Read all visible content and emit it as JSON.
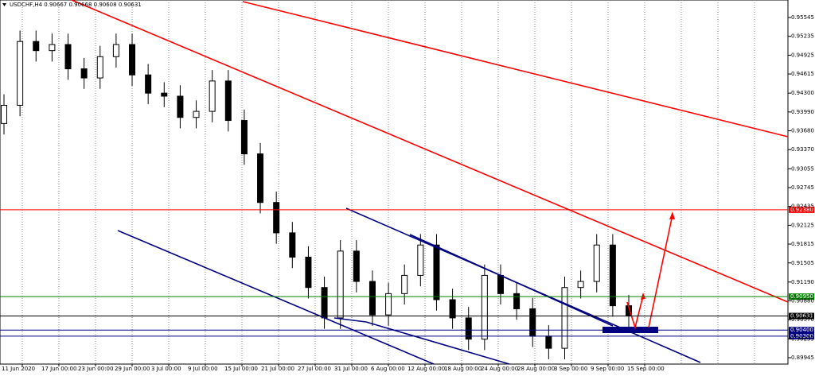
{
  "chart_data": {
    "type": "candlestick",
    "title": "USDCHF,H4  0.90667 0.90668 0.90608 0.90631",
    "categories": [
      "11 Jun 2020",
      "17 Jun 00:00",
      "23 Jun 00:00",
      "29 Jun 00:00",
      "3 Jul 00:00",
      "9 Jul 00:00",
      "15 Jul 00:00",
      "21 Jul 00:00",
      "27 Jul 00:00",
      "31 Jul 00:00",
      "6 Aug 00:00",
      "12 Aug 00:00",
      "18 Aug 00:00",
      "24 Aug 00:00",
      "28 Aug 00:00",
      "3 Sep 00:00",
      "9 Sep 00:00",
      "15 Sep 00:00"
    ],
    "open": [
      0.938,
      0.941,
      0.9515,
      0.95,
      0.951,
      0.947,
      0.9455,
      0.949,
      0.951,
      0.946,
      0.943,
      0.9425,
      0.939,
      0.94,
      0.945,
      0.9385,
      0.933,
      0.925,
      0.92,
      0.916,
      0.911,
      0.906,
      0.917,
      0.912,
      0.9065,
      0.91,
      0.913,
      0.918,
      0.909,
      0.906,
      0.9025,
      0.913,
      0.91,
      0.9075,
      0.903,
      0.901,
      0.911,
      0.912,
      0.918,
      0.908
    ],
    "high": [
      0.9428,
      0.9533,
      0.9533,
      0.9528,
      0.9528,
      0.9488,
      0.9508,
      0.9528,
      0.9528,
      0.9478,
      0.9448,
      0.9443,
      0.9418,
      0.9468,
      0.9468,
      0.9403,
      0.9348,
      0.9268,
      0.9218,
      0.9178,
      0.9128,
      0.9188,
      0.9188,
      0.9138,
      0.9118,
      0.9148,
      0.9198,
      0.9198,
      0.9108,
      0.9078,
      0.9148,
      0.9148,
      0.9118,
      0.9093,
      0.9048,
      0.9128,
      0.9138,
      0.9198,
      0.9198,
      0.9098
    ],
    "low": [
      0.9362,
      0.9392,
      0.9482,
      0.9482,
      0.9452,
      0.9437,
      0.9437,
      0.9472,
      0.9442,
      0.9412,
      0.9407,
      0.9372,
      0.9372,
      0.9382,
      0.9367,
      0.9312,
      0.9232,
      0.9182,
      0.9142,
      0.9092,
      0.9042,
      0.9042,
      0.9102,
      0.9047,
      0.9047,
      0.9082,
      0.9112,
      0.9072,
      0.9042,
      0.9007,
      0.9007,
      0.9082,
      0.9057,
      0.9012,
      0.8992,
      0.8992,
      0.9092,
      0.9102,
      0.9062,
      0.9045
    ],
    "close": [
      0.941,
      0.9515,
      0.95,
      0.951,
      0.947,
      0.9455,
      0.949,
      0.951,
      0.946,
      0.943,
      0.9425,
      0.939,
      0.94,
      0.945,
      0.9385,
      0.933,
      0.925,
      0.92,
      0.916,
      0.911,
      0.906,
      0.917,
      0.912,
      0.9065,
      0.91,
      0.913,
      0.918,
      0.909,
      0.906,
      0.9025,
      0.913,
      0.91,
      0.9075,
      0.903,
      0.901,
      0.911,
      0.912,
      0.918,
      0.908,
      0.9063
    ],
    "ylim": [
      0.8984,
      0.95833
    ],
    "yticks": [
      0.95545,
      0.95235,
      0.94925,
      0.94615,
      {
        "value": 0.943,
        "label": "0.94300"
      },
      {
        "value": 0.9399,
        "label": "0.93990"
      },
      {
        "value": 0.9368,
        "label": "0.93680"
      },
      {
        "value": 0.9337,
        "label": "0.93370"
      },
      0.93055,
      0.92745,
      0.92435,
      0.92125,
      0.91815,
      0.91505,
      {
        "value": 0.9119,
        "label": "0.91190"
      },
      {
        "value": 0.9088,
        "label": "0.90880"
      },
      {
        "value": 0.9057,
        "label": "0.90570"
      },
      0.90255,
      0.89945
    ],
    "grid": true,
    "levels": [
      {
        "value": 0.9238,
        "label": "0.92380",
        "color": "#ff0000"
      },
      {
        "value": 0.9095,
        "label": "0.90950",
        "color": "#008000"
      },
      {
        "value": 0.90631,
        "label": "0.90631",
        "color": "#000000"
      },
      {
        "value": 0.904,
        "label": "0.90400",
        "color": "#000080"
      },
      {
        "value": 0.903,
        "label": "0.90300",
        "color": "#000080"
      }
    ]
  }
}
